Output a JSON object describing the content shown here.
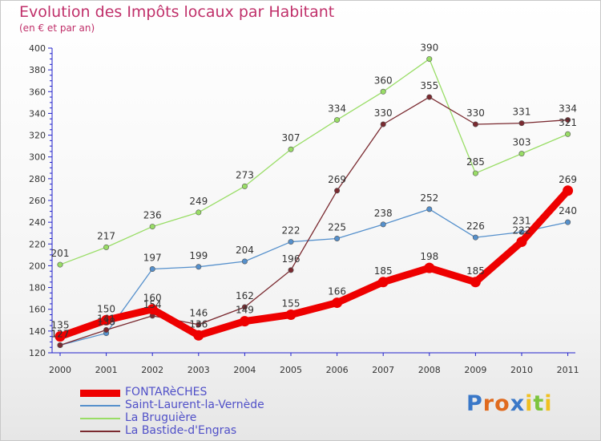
{
  "chart_data": {
    "type": "line",
    "title": "Evolution des Impôts locaux par Habitant",
    "subtitle": "(en € et par an)",
    "categories": [
      "2000",
      "2001",
      "2002",
      "2003",
      "2004",
      "2005",
      "2006",
      "2007",
      "2008",
      "2009",
      "2010",
      "2011"
    ],
    "y_ticks": [
      120,
      140,
      160,
      180,
      200,
      220,
      240,
      260,
      280,
      300,
      320,
      340,
      360,
      380,
      400
    ],
    "ylim": [
      120,
      400
    ],
    "grid": false,
    "legend_position": "bottom-left",
    "series": [
      {
        "name": "FONTARèCHES",
        "color": "#ee0000",
        "values": [
          135,
          150,
          160,
          136,
          149,
          155,
          166,
          185,
          198,
          185,
          222,
          269
        ],
        "labels": [
          "135",
          "150",
          "160",
          "136",
          "149",
          "155",
          "166",
          "185",
          "198",
          "185",
          "222",
          "269"
        ]
      },
      {
        "name": "Saint-Laurent-la-Vernède",
        "color": "#5590cc",
        "values": [
          127,
          138,
          197,
          199,
          204,
          222,
          225,
          238,
          252,
          226,
          231,
          240
        ],
        "labels": [
          "127",
          "138",
          "197",
          "199",
          "204",
          "222",
          "225",
          "238",
          "252",
          "226",
          "231",
          "240"
        ]
      },
      {
        "name": "La Bruguière",
        "color": "#99dd66",
        "values": [
          201,
          217,
          236,
          249,
          273,
          307,
          334,
          360,
          390,
          285,
          303,
          321
        ],
        "labels": [
          "201",
          "217",
          "236",
          "249",
          "273",
          "307",
          "334",
          "360",
          "390",
          "285",
          "303",
          "321"
        ]
      },
      {
        "name": "La Bastide-d'Engras",
        "color": "#7a2a30",
        "values": [
          127,
          141,
          154,
          146,
          162,
          196,
          269,
          330,
          355,
          330,
          331,
          334
        ],
        "labels": [
          "127",
          "141",
          "154",
          "146",
          "162",
          "196",
          "269",
          "330",
          "355",
          "330",
          "331",
          "334"
        ]
      }
    ]
  },
  "logo": {
    "letters": [
      {
        "char": "P",
        "color": "#3a78c8"
      },
      {
        "char": "r",
        "color": "#e06a1e"
      },
      {
        "char": "o",
        "color": "#e06a1e"
      },
      {
        "char": "x",
        "color": "#3a78c8"
      },
      {
        "char": "i",
        "color": "#f0c020"
      },
      {
        "char": "t",
        "color": "#7cc43e"
      },
      {
        "char": "i",
        "color": "#f0c020"
      }
    ]
  }
}
